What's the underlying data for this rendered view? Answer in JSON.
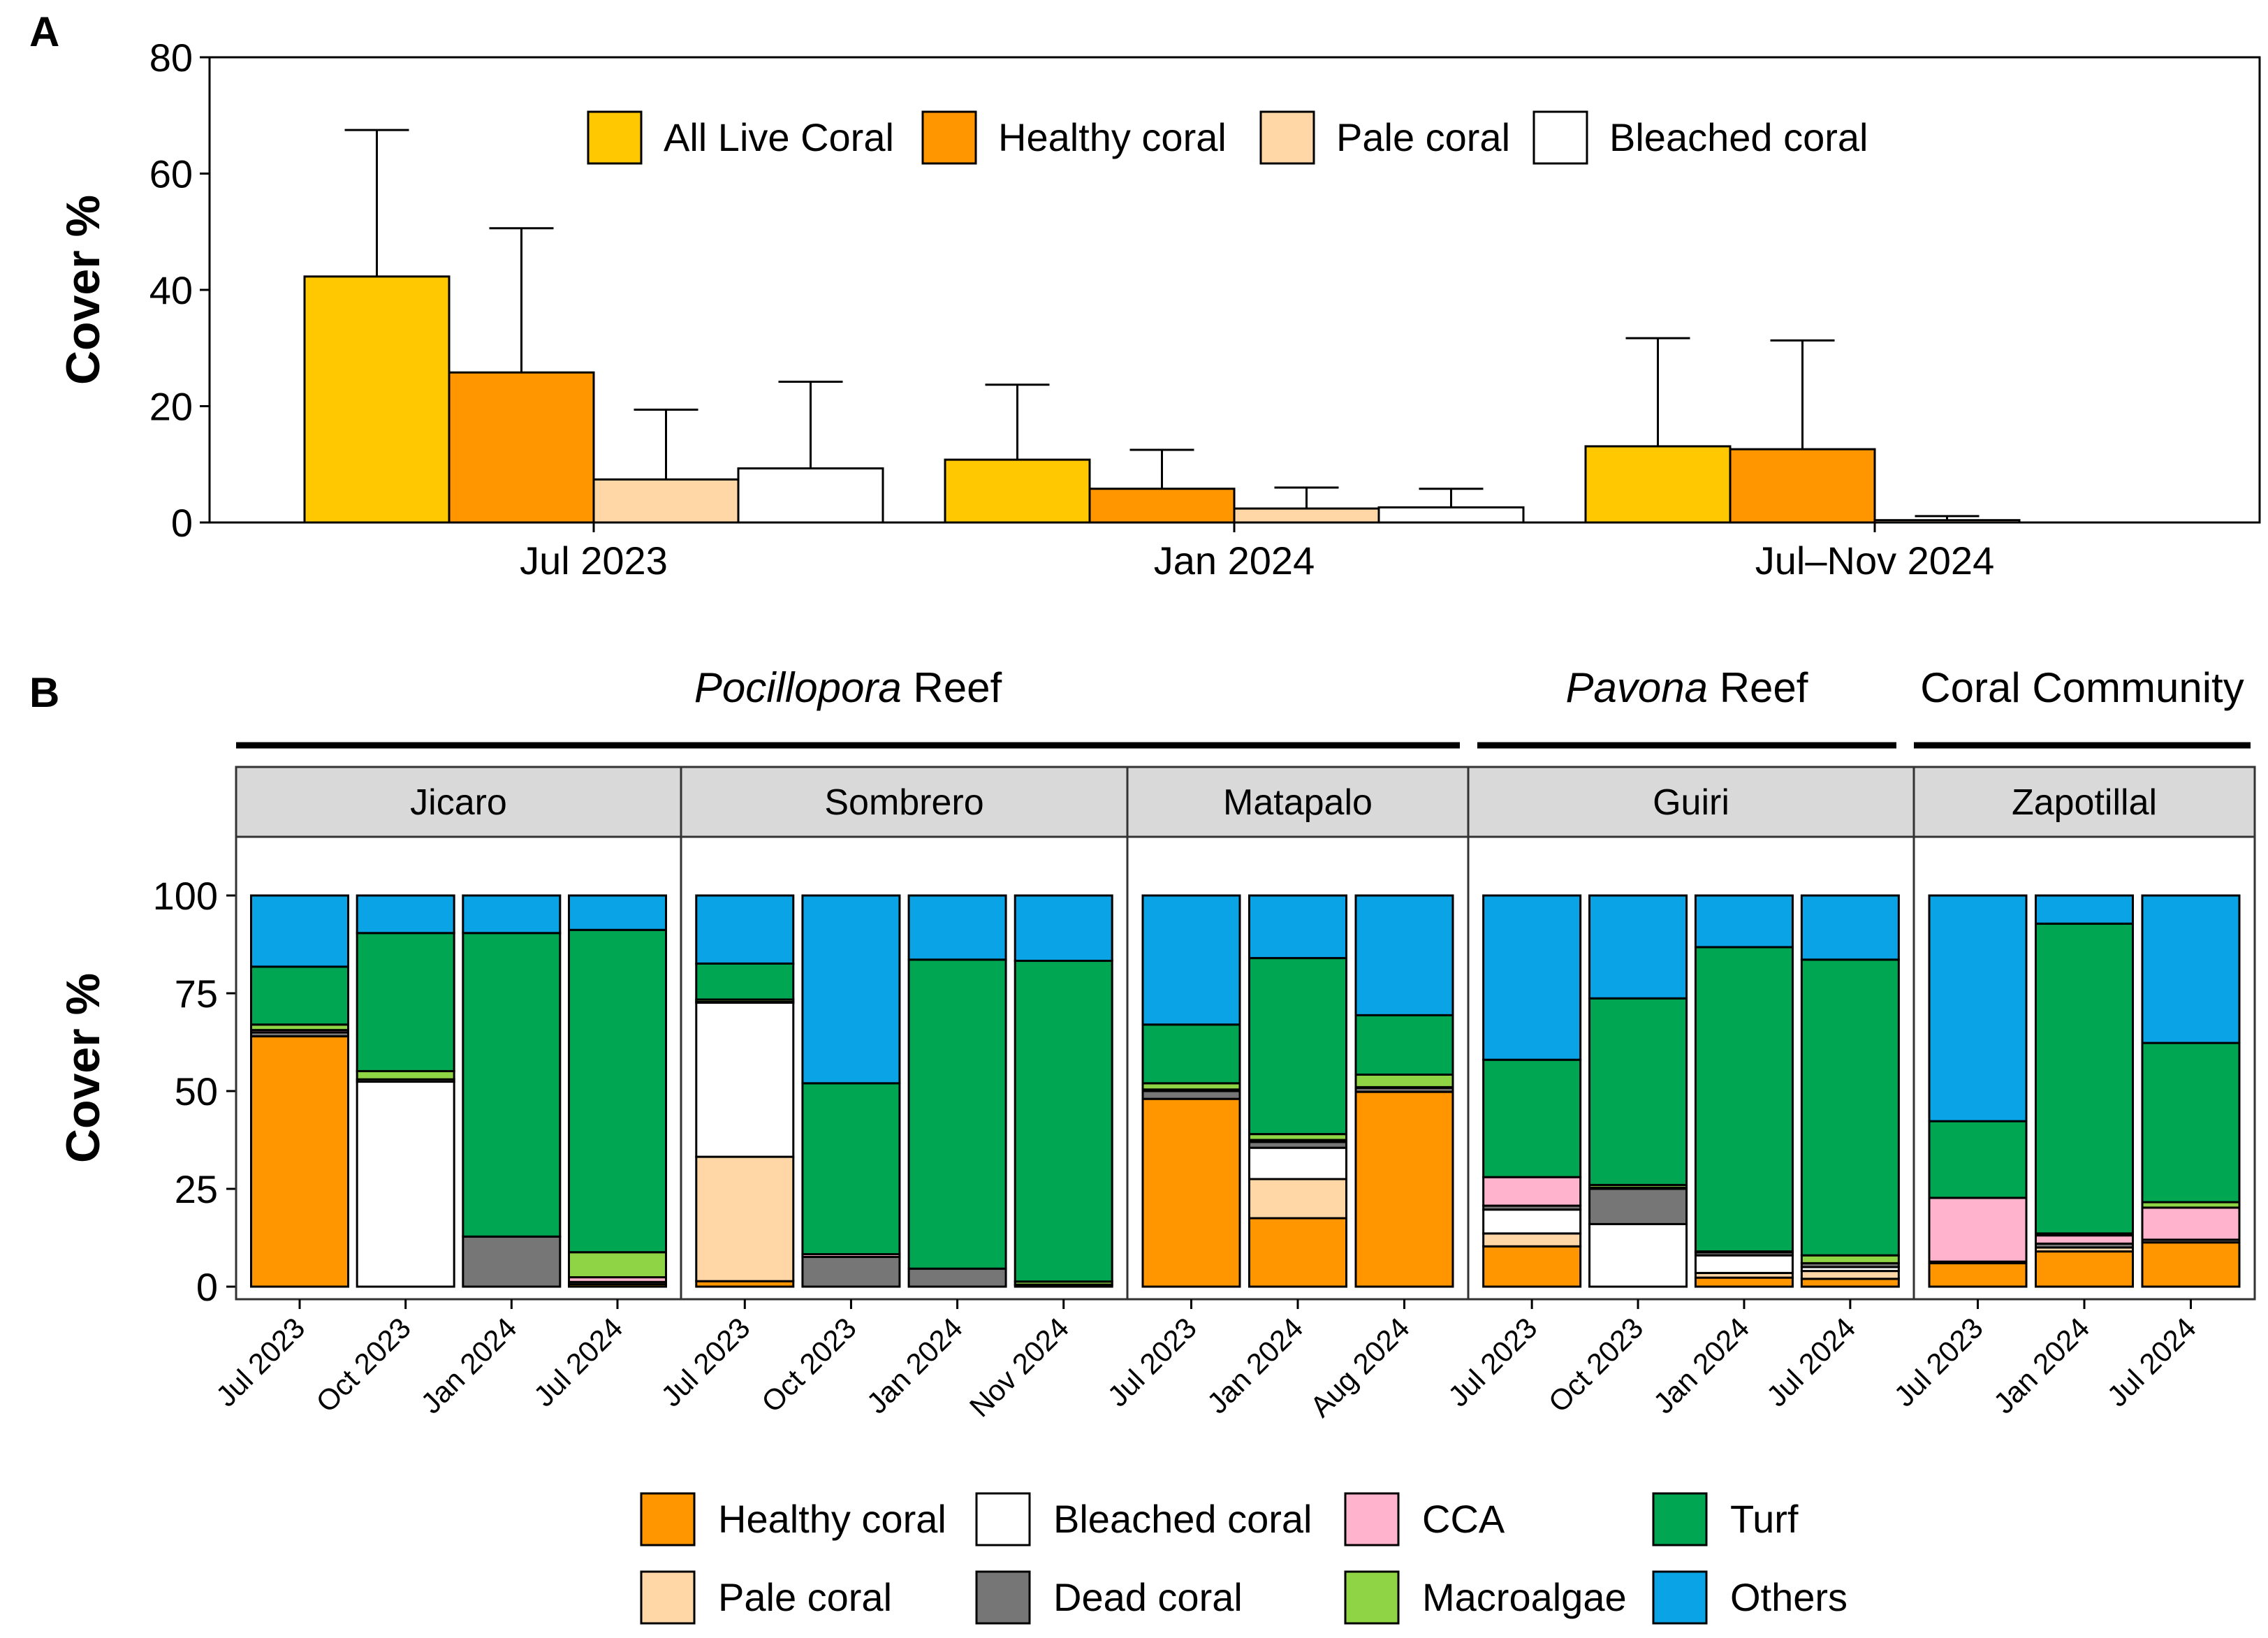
{
  "figure": {
    "panel_a_label": "A",
    "panel_b_label": "B"
  },
  "chart_data": [
    {
      "panel": "A",
      "type": "bar",
      "title": "",
      "xlabel": "",
      "ylabel": "Cover %",
      "ylim": [
        0,
        80
      ],
      "yticks": [
        0,
        20,
        40,
        60,
        80
      ],
      "categories": [
        "Jul 2023",
        "Jan 2024",
        "Jul–Nov 2024"
      ],
      "legend_position": "top",
      "series": [
        {
          "name": "All Live Coral",
          "color": "#FFC800",
          "values": [
            42.3,
            10.8,
            13.1
          ],
          "error_upper": [
            67.5,
            23.7,
            31.7
          ]
        },
        {
          "name": "Healthy coral",
          "color": "#FF9600",
          "values": [
            25.8,
            5.8,
            12.6
          ],
          "error_upper": [
            50.6,
            12.5,
            31.3
          ]
        },
        {
          "name": "Pale coral",
          "color": "#FFD6A6",
          "values": [
            7.4,
            2.4,
            0.4
          ],
          "error_upper": [
            19.4,
            6.0,
            1.1
          ]
        },
        {
          "name": "Bleached coral",
          "color": "#FFFFFF",
          "values": [
            9.3,
            2.6,
            0.0
          ],
          "error_upper": [
            24.2,
            5.8,
            0.0
          ]
        }
      ]
    },
    {
      "panel": "B",
      "type": "bar",
      "stacked": true,
      "title": "",
      "xlabel": "",
      "ylabel": "Cover %",
      "ylim": [
        0,
        115
      ],
      "yticks": [
        0,
        25,
        50,
        75,
        100
      ],
      "groups": [
        {
          "label_italic": "Pocillopora",
          "label_rest": " Reef",
          "sites": [
            "Jicaro",
            "Sombrero",
            "Matapalo"
          ]
        },
        {
          "label_italic": "Pavona",
          "label_rest": " Reef",
          "sites": [
            "Guiri"
          ]
        },
        {
          "label_italic": "",
          "label_rest": "Coral Community",
          "sites": [
            "Zapotillal"
          ]
        }
      ],
      "categories_order": [
        "Healthy coral",
        "Pale coral",
        "Bleached coral",
        "Dead coral",
        "CCA",
        "Macroalgae",
        "Turf",
        "Others"
      ],
      "colors": {
        "Healthy coral": "#FF9600",
        "Pale coral": "#FFD6A6",
        "Bleached coral": "#FFFFFF",
        "Dead coral": "#767676",
        "CCA": "#FFB3CC",
        "Macroalgae": "#8FD444",
        "Turf": "#00A651",
        "Others": "#0AA3E6"
      },
      "legend_position": "bottom",
      "legend_rows": [
        [
          "Healthy coral",
          "Bleached coral",
          "CCA",
          "Turf"
        ],
        [
          "Pale coral",
          "Dead coral",
          "Macroalgae",
          "Others"
        ]
      ],
      "facets": [
        {
          "site": "Jicaro",
          "bars": [
            {
              "label": "Jul 2023",
              "values": [
                64,
                0,
                0,
                1,
                0.6,
                1.4,
                14.8,
                18.2
              ]
            },
            {
              "label": "Oct 2023",
              "values": [
                0,
                0,
                52.4,
                0.6,
                0,
                2.1,
                35.3,
                9.6
              ]
            },
            {
              "label": "Jan 2024",
              "values": [
                0,
                0,
                0,
                12.8,
                0,
                0,
                77.6,
                9.6
              ]
            },
            {
              "label": "Jul 2024",
              "values": [
                0.6,
                0,
                0,
                0.6,
                1.2,
                6.4,
                82.4,
                8.8
              ]
            }
          ]
        },
        {
          "site": "Sombrero",
          "bars": [
            {
              "label": "Jul 2023",
              "values": [
                1.4,
                31.8,
                39.4,
                0.2,
                0,
                0.6,
                9.2,
                17.4
              ]
            },
            {
              "label": "Oct 2023",
              "values": [
                0,
                0,
                0,
                7.6,
                0.7,
                0,
                43.7,
                48
              ]
            },
            {
              "label": "Jan 2024",
              "values": [
                0,
                0,
                0,
                4.6,
                0,
                0,
                79,
                16.4
              ]
            },
            {
              "label": "Nov 2024",
              "values": [
                0,
                0,
                0,
                0.5,
                0,
                0.8,
                82,
                16.7
              ]
            }
          ]
        },
        {
          "site": "Matapalo",
          "bars": [
            {
              "label": "Jul 2023",
              "values": [
                48,
                0,
                0,
                2,
                0.4,
                1.6,
                15,
                33
              ]
            },
            {
              "label": "Jan 2024",
              "values": [
                17.5,
                10,
                8,
                1.5,
                0.5,
                1.5,
                45,
                16
              ]
            },
            {
              "label": "Aug 2024",
              "values": [
                49.8,
                0,
                0,
                1,
                0.2,
                3.2,
                15.2,
                30.6
              ]
            }
          ]
        },
        {
          "site": "Guiri",
          "bars": [
            {
              "label": "Jul 2023",
              "values": [
                10.3,
                3.3,
                6.1,
                1,
                7.3,
                0,
                30,
                42
              ]
            },
            {
              "label": "Oct 2023",
              "values": [
                0,
                0,
                16,
                9,
                0.3,
                0.7,
                47.7,
                26.3
              ]
            },
            {
              "label": "Jan 2024",
              "values": [
                2.3,
                1.2,
                4.5,
                0.8,
                0.2,
                0,
                77.8,
                13.2
              ]
            },
            {
              "label": "Jul 2024",
              "values": [
                2,
                2,
                1,
                1,
                0,
                2,
                75.6,
                16.4
              ]
            }
          ]
        },
        {
          "site": "Zapotillal",
          "bars": [
            {
              "label": "Jul 2023",
              "values": [
                6,
                0,
                0,
                0.4,
                16.3,
                0,
                19.6,
                57.7
              ]
            },
            {
              "label": "Jan 2024",
              "values": [
                9,
                1,
                0,
                1,
                2.1,
                0.5,
                79.2,
                7.2
              ]
            },
            {
              "label": "Jul 2024",
              "values": [
                11.3,
                0,
                0,
                0.7,
                8.2,
                1.4,
                40.7,
                37.7
              ]
            }
          ]
        }
      ]
    }
  ]
}
